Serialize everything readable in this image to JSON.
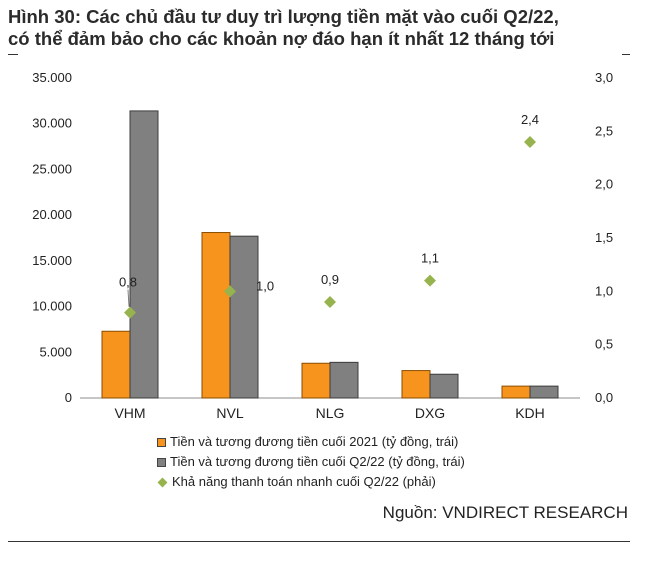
{
  "title": {
    "line1": "Hình 30: Các chủ đầu tư duy trì lượng tiền mặt vào cuối Q2/22,",
    "line2": "có thể đảm bảo cho các khoản nợ đáo hạn ít nhất 12 tháng tới"
  },
  "source": "Nguồn: VNDIRECT RESEARCH",
  "chart_data": {
    "type": "bar",
    "categories": [
      "VHM",
      "NVL",
      "NLG",
      "DXG",
      "KDH"
    ],
    "series": [
      {
        "name": "Tiền và tương đương tiền cuối 2021 (tỷ đồng, trái)",
        "kind": "bar",
        "axis": "left",
        "color": "#F7941D",
        "values": [
          7300,
          18100,
          3800,
          3000,
          1300
        ]
      },
      {
        "name": "Tiền và tương đương tiền cuối Q2/22 (tỷ đồng, trái)",
        "kind": "bar",
        "axis": "left",
        "color": "#808080",
        "values": [
          31400,
          17700,
          3900,
          2600,
          1300
        ]
      },
      {
        "name": "Khả năng thanh toán nhanh cuối Q2/22 (phải)",
        "kind": "scatter",
        "axis": "right",
        "color": "#97B34E",
        "values": [
          0.8,
          1.0,
          0.9,
          1.1,
          2.4
        ],
        "labels": [
          "0,8",
          "1,0",
          "0,9",
          "1,1",
          "2,4"
        ]
      }
    ],
    "y_left": {
      "ylim": [
        0,
        35000
      ],
      "ticks": [
        "0",
        "5.000",
        "10.000",
        "15.000",
        "20.000",
        "25.000",
        "30.000",
        "35.000"
      ]
    },
    "y_right": {
      "ylim": [
        0,
        3.0
      ],
      "ticks": [
        "0,0",
        "0,5",
        "1,0",
        "1,5",
        "2,0",
        "2,5",
        "3,0"
      ]
    },
    "grid": false,
    "legend_position": "bottom"
  }
}
